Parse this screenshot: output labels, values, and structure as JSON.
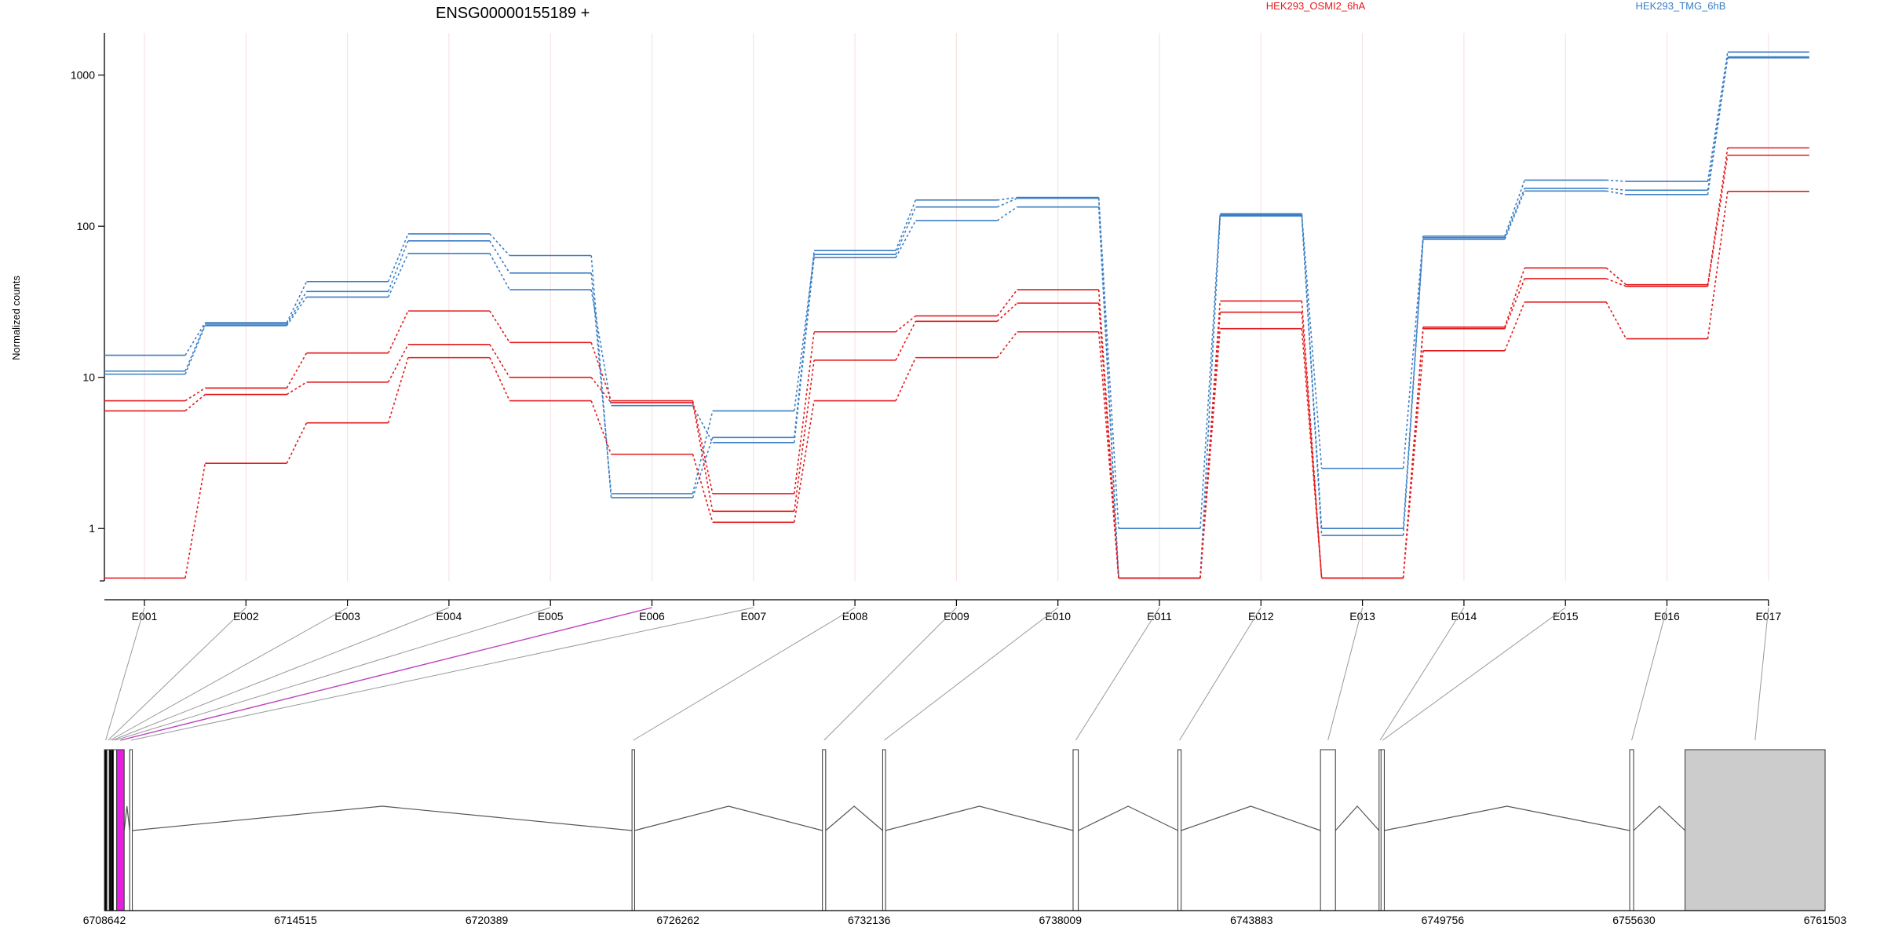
{
  "chart_data": [
    {
      "type": "line",
      "title": "ENSG00000155189 +",
      "ylabel": "Normalized counts",
      "xlabel": "",
      "y_scale": "log",
      "ylim": [
        0.45,
        1900
      ],
      "y_ticks": [
        1,
        10,
        100,
        1000
      ],
      "y_tick_labels": [
        "1",
        "10",
        "100",
        "1000"
      ],
      "categories": [
        "E001",
        "E002",
        "E003",
        "E004",
        "E005",
        "E006",
        "E007",
        "E008",
        "E009",
        "E010",
        "E011",
        "E012",
        "E013",
        "E014",
        "E015",
        "E016",
        "E017"
      ],
      "legend_position": "top",
      "grid": "vertical-light",
      "colors": {
        "HEK293_OSMI2_6hA": "#e31a1c",
        "HEK293_TMG_6hB": "#3b7fc4"
      },
      "legend": [
        "HEK293_OSMI2_6hA",
        "HEK293_TMG_6hB"
      ],
      "series": [
        {
          "group": "HEK293_TMG_6hB",
          "values": [
            14,
            23,
            43,
            89,
            64,
            1.6,
            4.0,
            69,
            149,
            155,
            1.0,
            121,
            2.5,
            86,
            202,
            198,
            1420
          ]
        },
        {
          "group": "HEK293_TMG_6hB",
          "values": [
            11,
            22.5,
            37,
            80,
            49,
            1.7,
            6.0,
            65,
            134,
            153,
            0.47,
            119,
            1.0,
            84,
            178,
            173,
            1320
          ]
        },
        {
          "group": "HEK293_TMG_6hB",
          "values": [
            10.5,
            22,
            34,
            66,
            38,
            6.5,
            3.7,
            62,
            109,
            134,
            0.47,
            117,
            0.9,
            82,
            171,
            162,
            1300
          ]
        },
        {
          "group": "HEK293_OSMI2_6hA",
          "values": [
            7,
            8.5,
            14.5,
            27.5,
            17,
            7.0,
            1.7,
            20,
            25.5,
            38,
            0.47,
            32,
            0.47,
            21.5,
            53,
            41,
            330
          ]
        },
        {
          "group": "HEK293_OSMI2_6hA",
          "values": [
            6,
            7.7,
            9.3,
            16.5,
            10,
            6.8,
            1.3,
            13,
            23.5,
            31,
            0.47,
            27,
            0.47,
            21,
            45,
            40,
            295
          ]
        },
        {
          "group": "HEK293_OSMI2_6hA",
          "values": [
            0.47,
            2.7,
            5.0,
            13.5,
            7.0,
            3.1,
            1.1,
            7,
            13.5,
            20,
            0.47,
            21,
            0.47,
            15,
            31.5,
            18,
            170
          ]
        }
      ]
    },
    {
      "type": "gene_model",
      "coordinate_labels": [
        "6708642",
        "6714515",
        "6720389",
        "6726262",
        "6732136",
        "6738009",
        "6743883",
        "6749756",
        "6755630",
        "6761503"
      ],
      "coordinate_values": [
        6708642,
        6714515,
        6720389,
        6726262,
        6732136,
        6738009,
        6743883,
        6749756,
        6755630,
        6761503
      ],
      "range": [
        6708642,
        6761503
      ],
      "exons": [
        {
          "id": "E001",
          "start": 6708642,
          "end": 6708720,
          "fill": "#000000"
        },
        {
          "id": "E002",
          "start": 6708720,
          "end": 6708790,
          "fill": "#ffffff"
        },
        {
          "id": "E003",
          "start": 6708790,
          "end": 6708850,
          "fill": "#000000"
        },
        {
          "id": "E004",
          "start": 6708850,
          "end": 6708920,
          "fill": "#000000"
        },
        {
          "id": "E005",
          "start": 6708920,
          "end": 6709020,
          "fill": "#ffffff"
        },
        {
          "id": "E006",
          "start": 6709020,
          "end": 6709250,
          "fill": "#e520e0"
        },
        {
          "id": "E007",
          "start": 6709420,
          "end": 6709500,
          "fill": "#ffffff"
        },
        {
          "id": "E008",
          "start": 6724850,
          "end": 6724930,
          "fill": "#ffffff"
        },
        {
          "id": "E009",
          "start": 6730700,
          "end": 6730800,
          "fill": "#ffffff"
        },
        {
          "id": "E010",
          "start": 6732550,
          "end": 6732640,
          "fill": "#ffffff"
        },
        {
          "id": "E011",
          "start": 6738400,
          "end": 6738560,
          "fill": "#ffffff"
        },
        {
          "id": "E012",
          "start": 6741620,
          "end": 6741720,
          "fill": "#ffffff"
        },
        {
          "id": "E013",
          "start": 6746000,
          "end": 6746460,
          "fill": "#ffffff"
        },
        {
          "id": "E014",
          "start": 6747800,
          "end": 6747860,
          "fill": "#ffffff"
        },
        {
          "id": "E015",
          "start": 6747860,
          "end": 6747960,
          "fill": "#ffffff"
        },
        {
          "id": "E016",
          "start": 6755500,
          "end": 6755620,
          "fill": "#ffffff"
        },
        {
          "id": "E017",
          "start": 6757200,
          "end": 6761503,
          "fill": "#cccccc"
        }
      ],
      "highlight_exon": "E006",
      "highlight_color": "#c040c0"
    }
  ]
}
